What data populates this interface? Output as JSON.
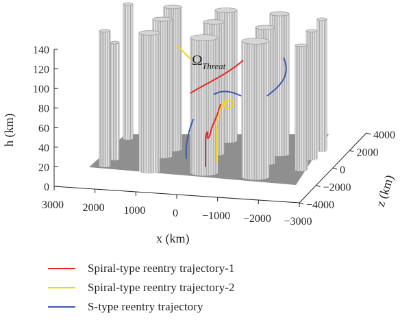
{
  "chart_data": {
    "type": "3d-surface-with-lines",
    "title": "",
    "xlabel": "x (km)",
    "ylabel": "h (km)",
    "zlabel": "z (km)",
    "x_ticks": [
      "3000",
      "2000",
      "1000",
      "0",
      "−1000",
      "−2000",
      "−3000"
    ],
    "z_ticks": [
      "−4000",
      "−2000",
      "0",
      "2000",
      "4000"
    ],
    "h_ticks": [
      "0",
      "20",
      "40",
      "60",
      "80",
      "100",
      "120",
      "140"
    ],
    "xlim": [
      -3000,
      3000
    ],
    "zlim": [
      -4000,
      4000
    ],
    "hlim": [
      0,
      140
    ],
    "grid": false,
    "legend_position": "bottom-left",
    "annotation": {
      "omega": "Ω",
      "subscript": "Threat"
    },
    "colors": {
      "threat": "#9a9a9a",
      "threat_edge": "#bdbdbd",
      "ground": "#8f8f8f",
      "axis": "#231f20"
    },
    "series": [
      {
        "name": "Spiral-type reentry trajectory-1",
        "color": "#e8262a"
      },
      {
        "name": "Spiral-type reentry trajectory-2",
        "color": "#f4d21f"
      },
      {
        "name": "S-type reentry trajectory",
        "color": "#3a5ba8"
      }
    ]
  }
}
